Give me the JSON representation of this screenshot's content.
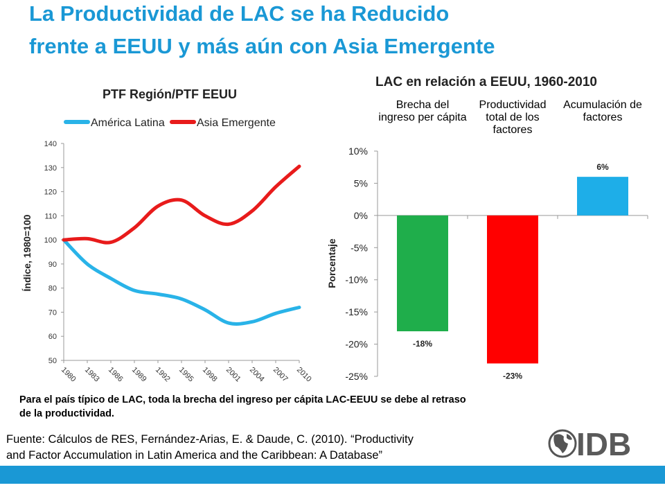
{
  "slide": {
    "title": [
      "La Productividad de LAC se ha Reducido",
      "frente a EEUU y más aún con Asia Emergente"
    ],
    "note": [
      "Para el país típico de LAC, toda la brecha del ingreso per cápita LAC-EEUU se debe al retraso",
      "de la productividad."
    ],
    "source": [
      "Fuente: Cálculos de RES, Fernández-Arias, E. & Daude, C. (2010). “Productivity",
      "and Factor Accumulation in Latin America and the Caribbean: A Database”"
    ],
    "logo": "IDB"
  },
  "chart_data": [
    {
      "type": "line",
      "title": "PTF Región/PTF EEUU",
      "ylabel": "Índice, 1980=100",
      "x": [
        1980,
        1983,
        1986,
        1989,
        1992,
        1995,
        1998,
        2001,
        2004,
        2007,
        2010
      ],
      "series": [
        {
          "name": "América Latina",
          "color": "#29b3e8",
          "values": [
            100,
            90,
            84,
            79,
            77.5,
            75.5,
            71,
            65.5,
            66,
            69.5,
            72
          ]
        },
        {
          "name": "Asia Emergente",
          "color": "#e81b1b",
          "values": [
            100,
            100.5,
            99,
            105,
            114,
            116.5,
            110,
            106.5,
            112,
            122,
            130.5
          ]
        }
      ],
      "xlim": [
        1980,
        2010
      ],
      "xticks": [
        1980,
        1983,
        1986,
        1989,
        1992,
        1995,
        1998,
        2001,
        2004,
        2007,
        2010
      ],
      "ylim": [
        50,
        140
      ],
      "yticks": [
        50,
        60,
        70,
        80,
        90,
        100,
        110,
        120,
        130,
        140
      ],
      "legend": "top",
      "grid": false
    },
    {
      "type": "bar",
      "title": "LAC en relación a EEUU, 1960-2010",
      "ylabel": "Porcentaje",
      "categories": [
        "Brecha del ingreso per cápita",
        "Productividad total de los factores",
        "Acumulación de factores"
      ],
      "values": [
        -18,
        -23,
        6
      ],
      "value_labels": [
        "-18%",
        "-23%",
        "6%"
      ],
      "colors": [
        "#1fae4b",
        "#ff0000",
        "#1eaee8"
      ],
      "ylim": [
        -25,
        10
      ],
      "yticks": [
        {
          "value": -25,
          "label": "-25%"
        },
        {
          "value": -20,
          "label": "-20%"
        },
        {
          "value": -15,
          "label": "-15%"
        },
        {
          "value": -10,
          "label": "-10%"
        },
        {
          "value": -5,
          "label": "-5%"
        },
        {
          "value": 0,
          "label": "0%"
        },
        {
          "value": 5,
          "label": "5%"
        },
        {
          "value": 10,
          "label": "10%"
        }
      ],
      "grid": false
    }
  ]
}
